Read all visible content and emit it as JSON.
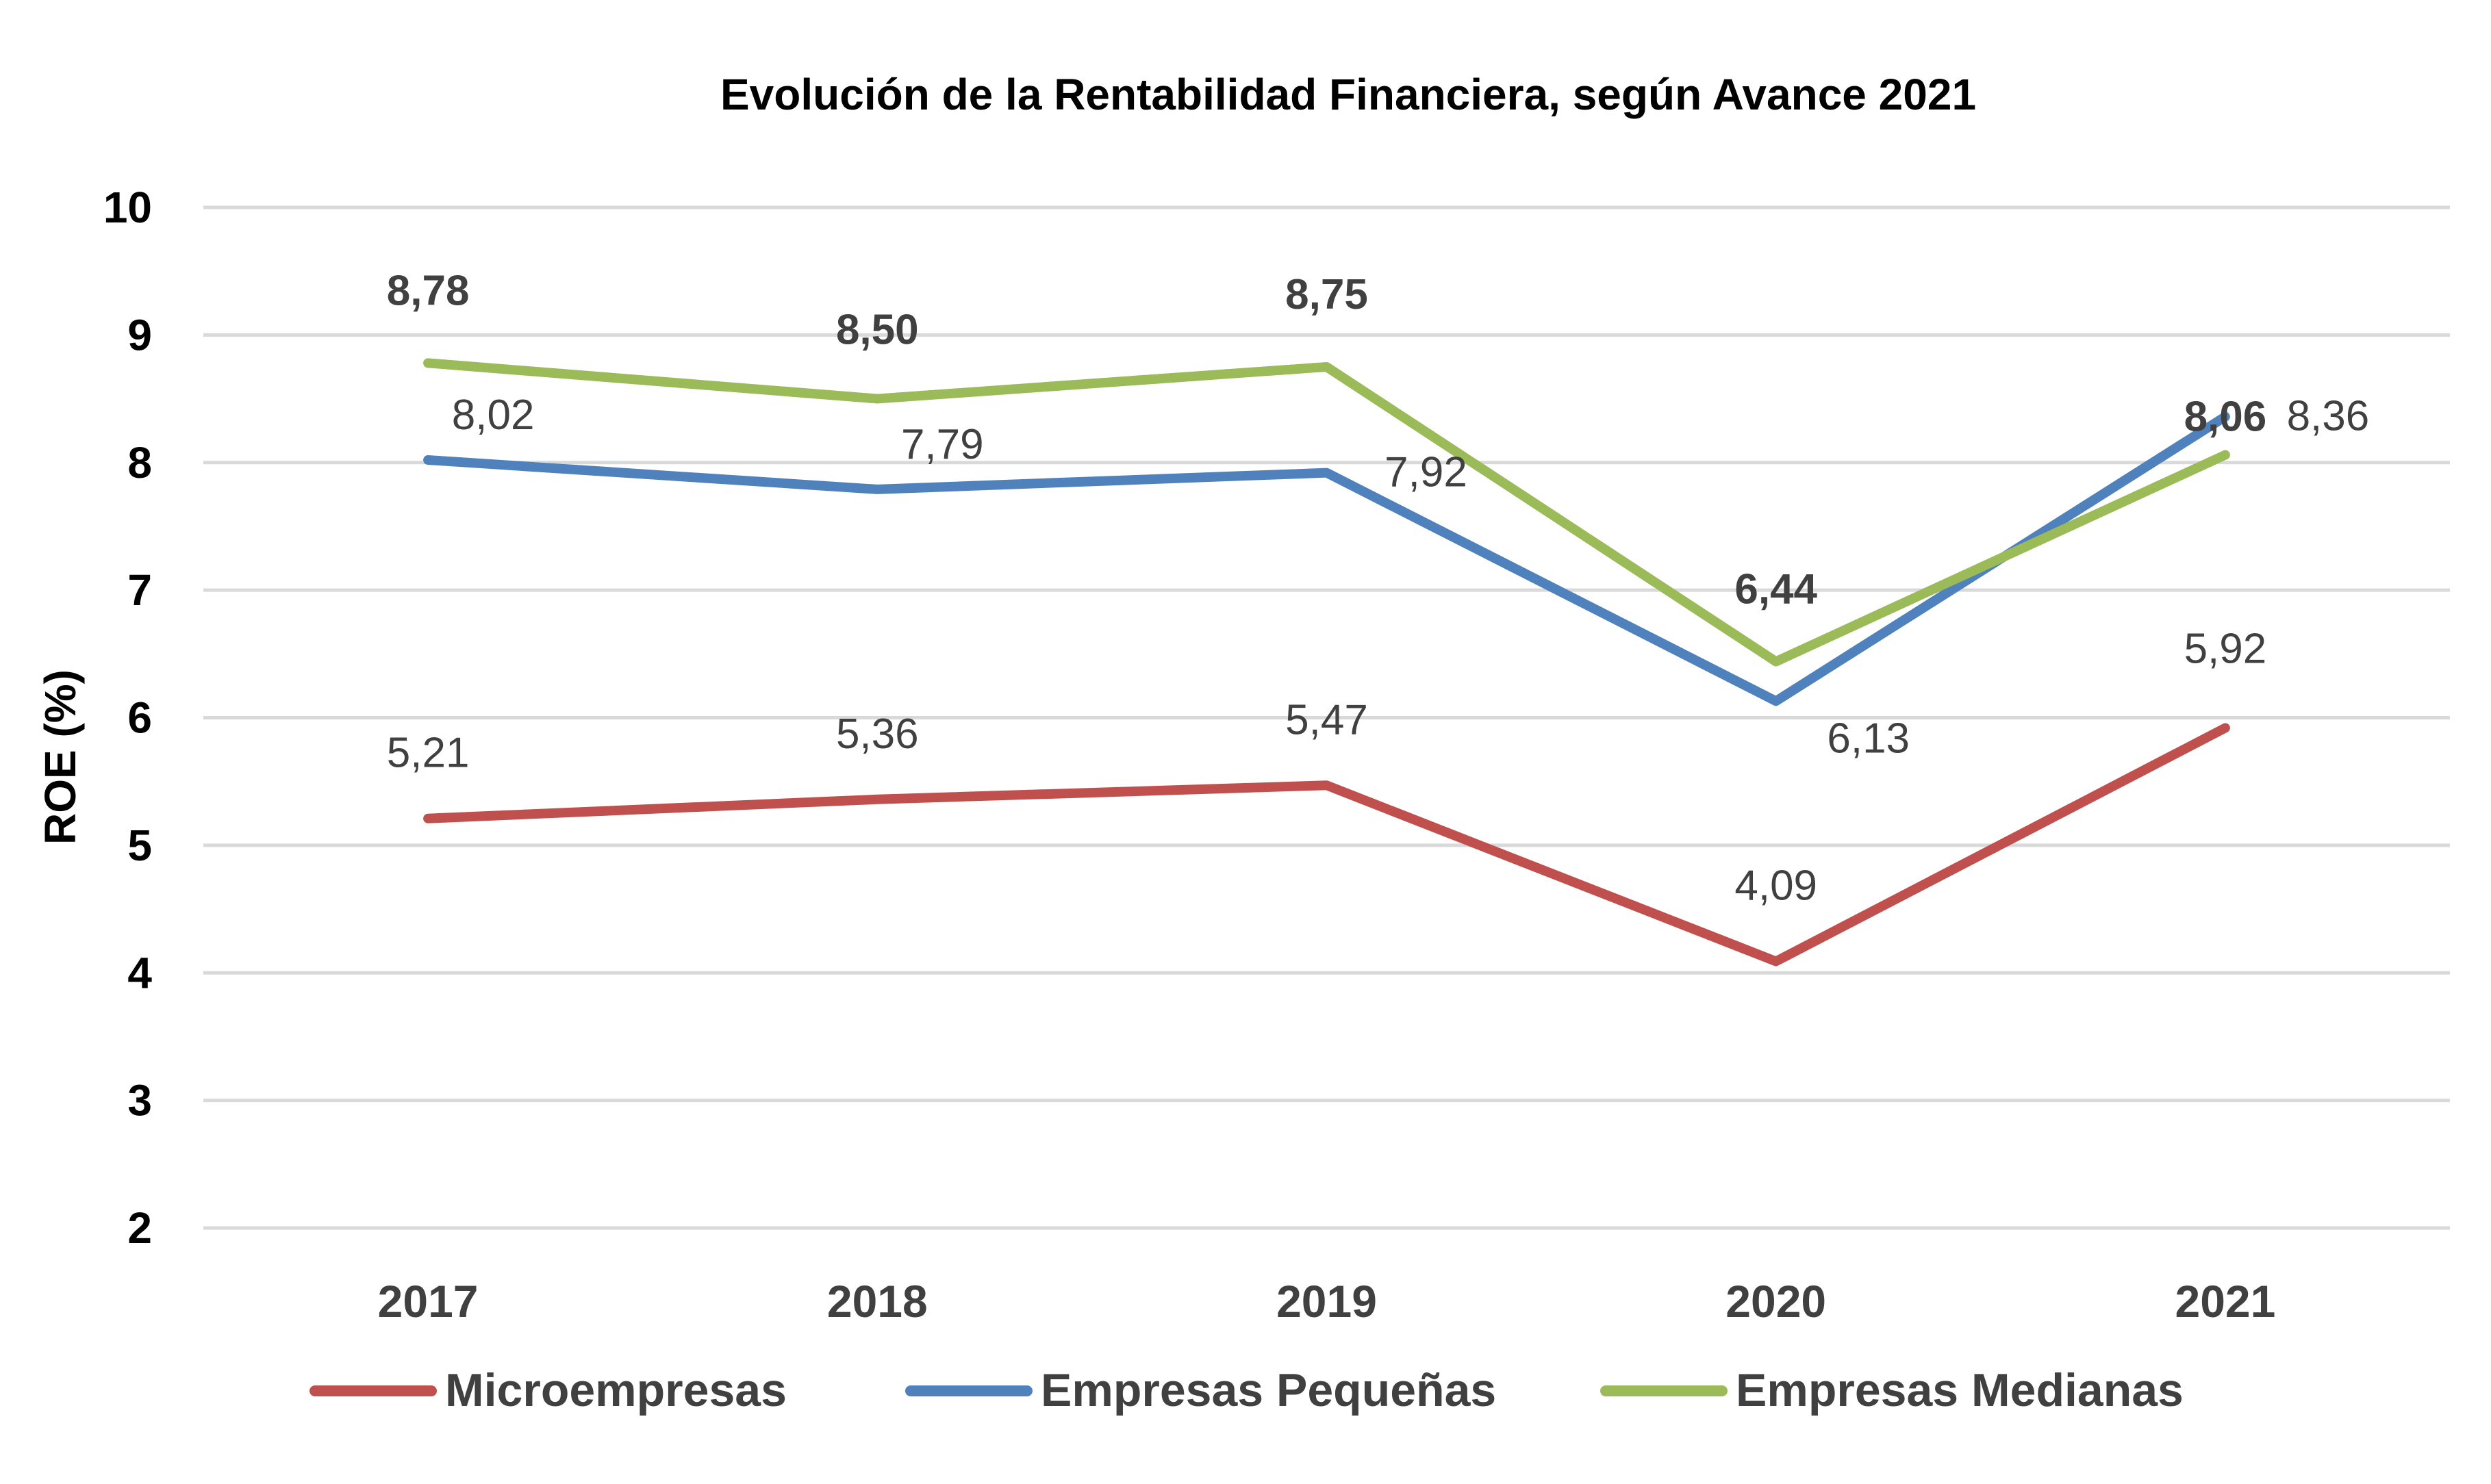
{
  "chart_data": {
    "type": "line",
    "title": "Evolución de la Rentabilidad Financiera, según Avance 2021",
    "xlabel": "",
    "ylabel": "ROE (%)",
    "categories": [
      "2017",
      "2018",
      "2019",
      "2020",
      "2021"
    ],
    "ylim": [
      2,
      10
    ],
    "yticks": [
      "2",
      "3",
      "4",
      "5",
      "6",
      "7",
      "8",
      "9",
      "10"
    ],
    "grid": true,
    "legend_position": "bottom",
    "series": [
      {
        "name": "Microempresas",
        "color": "#c0504d",
        "values": [
          5.21,
          5.36,
          5.47,
          4.09,
          5.92
        ],
        "labels": [
          "5,21",
          "5,36",
          "5,47",
          "4,09",
          "5,92"
        ],
        "label_bold": false
      },
      {
        "name": "Empresas Pequeñas",
        "color": "#4f81bd",
        "values": [
          8.02,
          7.79,
          7.92,
          6.13,
          8.36
        ],
        "labels": [
          "8,02",
          "7,79",
          "7,92",
          "6,13",
          "8,36"
        ],
        "label_bold": false
      },
      {
        "name": "Empresas Medianas",
        "color": "#9bbb59",
        "values": [
          8.78,
          8.5,
          8.75,
          6.44,
          8.06
        ],
        "labels": [
          "8,78",
          "8,50",
          "8,75",
          "6,44",
          "8,06"
        ],
        "label_bold": true
      }
    ]
  }
}
